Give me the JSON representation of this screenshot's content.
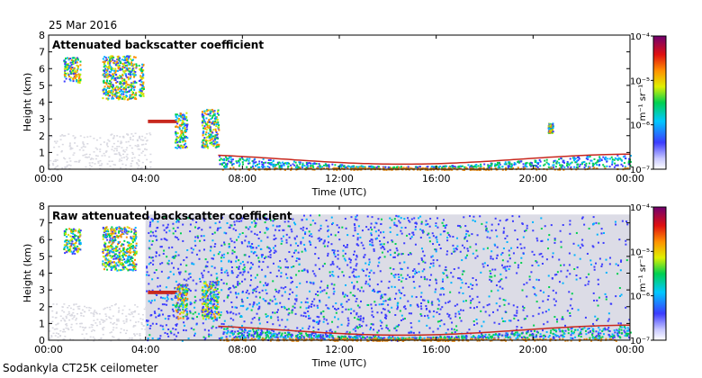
{
  "date_label": "25 Mar 2016",
  "instrument_label": "Sodankyla CT25K ceilometer",
  "colors": {
    "cloud": "#c8281e",
    "sub_cloud": "#e89020",
    "clear_noise": "#d8d8e0",
    "frame": "#000000"
  },
  "chart_data": [
    {
      "type": "heatmap",
      "title": "Attenuated backscatter coefficient",
      "xlabel": "Time (UTC)",
      "ylabel": "Height (km)",
      "xticks": [
        "00:00",
        "04:00",
        "08:00",
        "12:00",
        "16:00",
        "20:00",
        "00:00"
      ],
      "yticks": [
        "0",
        "1",
        "2",
        "3",
        "4",
        "5",
        "6",
        "7",
        "8"
      ],
      "xlim_hours": [
        0,
        24
      ],
      "ylim_km": [
        0,
        8
      ],
      "colorbar": {
        "label": "m⁻¹ sr⁻¹",
        "scale": "log",
        "range": [
          1e-07,
          0.0001
        ],
        "ticks": [
          "10⁻⁷",
          "10⁻⁶",
          "10⁻⁵",
          "10⁻⁴"
        ]
      },
      "features": [
        {
          "kind": "cloud",
          "t": [
            0.6,
            1.3
          ],
          "h": [
            5.2,
            6.7
          ]
        },
        {
          "kind": "cloud",
          "t": [
            2.2,
            3.6
          ],
          "h": [
            4.2,
            6.8
          ]
        },
        {
          "kind": "cloud",
          "t": [
            3.7,
            3.9
          ],
          "h": [
            4.4,
            6.3
          ]
        },
        {
          "kind": "layer",
          "t": [
            4.1,
            5.3
          ],
          "h": [
            2.8,
            2.9
          ]
        },
        {
          "kind": "cloud",
          "t": [
            5.2,
            5.7
          ],
          "h": [
            1.3,
            3.4
          ]
        },
        {
          "kind": "cloud",
          "t": [
            6.3,
            7.0
          ],
          "h": [
            1.3,
            3.6
          ]
        },
        {
          "kind": "cloud",
          "t": [
            20.6,
            20.8
          ],
          "h": [
            2.2,
            2.8
          ]
        },
        {
          "kind": "boundary_layer",
          "t": [
            7.0,
            24.0
          ],
          "h": [
            0.1,
            1.0
          ]
        }
      ]
    },
    {
      "type": "heatmap",
      "title": "Raw attenuated backscatter coefficient",
      "xlabel": "Time (UTC)",
      "ylabel": "Height (km)",
      "xticks": [
        "00:00",
        "04:00",
        "08:00",
        "12:00",
        "16:00",
        "20:00",
        "00:00"
      ],
      "yticks": [
        "0",
        "1",
        "2",
        "3",
        "4",
        "5",
        "6",
        "7",
        "8"
      ],
      "xlim_hours": [
        0,
        24
      ],
      "ylim_km": [
        0,
        8
      ],
      "colorbar": {
        "label": "m⁻¹ sr⁻¹",
        "scale": "log",
        "range": [
          1e-07,
          0.0001
        ],
        "ticks": [
          "10⁻⁷",
          "10⁻⁶",
          "10⁻⁵",
          "10⁻⁴"
        ]
      },
      "features": [
        {
          "kind": "cloud",
          "t": [
            0.6,
            1.3
          ],
          "h": [
            5.2,
            6.7
          ]
        },
        {
          "kind": "cloud",
          "t": [
            2.2,
            3.6
          ],
          "h": [
            4.2,
            6.8
          ]
        },
        {
          "kind": "noise",
          "t": [
            4.0,
            24.0
          ],
          "h": [
            0.0,
            7.5
          ]
        },
        {
          "kind": "layer",
          "t": [
            4.1,
            5.3
          ],
          "h": [
            2.8,
            2.9
          ]
        },
        {
          "kind": "cloud",
          "t": [
            5.2,
            5.7
          ],
          "h": [
            1.3,
            3.4
          ]
        },
        {
          "kind": "cloud",
          "t": [
            6.3,
            7.0
          ],
          "h": [
            1.3,
            3.6
          ]
        },
        {
          "kind": "boundary_layer",
          "t": [
            7.0,
            24.0
          ],
          "h": [
            0.1,
            1.0
          ]
        }
      ]
    }
  ]
}
